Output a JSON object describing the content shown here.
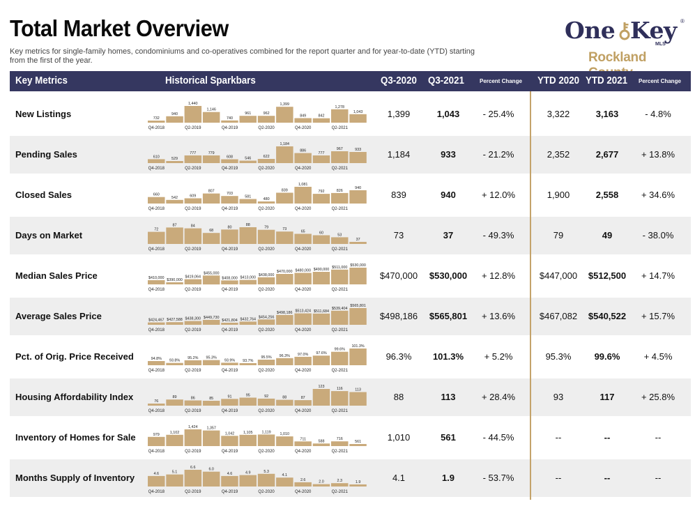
{
  "header": {
    "title": "Total Market Overview",
    "subtitle": "Key metrics for single-family homes, condominiums and co-operatives combined for the report quarter and for year-to-date (YTD) starting from the first of the year."
  },
  "logo": {
    "one": "One",
    "key": "Key",
    "mls": "MLS",
    "reg": "®",
    "county": "Rockland County",
    "brand_color": "#2f2f5a",
    "accent_color": "#c0a063"
  },
  "colors": {
    "header_bar": "#353760",
    "sparkbar": "#c9aa7b",
    "divider": "#c4a36a",
    "row_alt": "#eeeeee"
  },
  "columns": {
    "key_metrics": "Key Metrics",
    "sparkbars": "Historical Sparkbars",
    "q3_2020": "Q3-2020",
    "q3_2021": "Q3-2021",
    "pct_change": "Percent Change",
    "ytd_2020": "YTD 2020",
    "ytd_2021": "YTD 2021",
    "ytd_pct_change": "Percent Change"
  },
  "spark_axis_labels": [
    "Q4-2018",
    "Q2-2019",
    "Q4-2019",
    "Q2-2020",
    "Q4-2020",
    "Q2-2021"
  ],
  "rows": [
    {
      "metric": "New Listings",
      "q3_2020": "1,399",
      "q3_2021": "1,043",
      "pct": "- 25.4%",
      "ytd_2020": "3,322",
      "ytd_2021": "3,163",
      "ytd_pct": "- 4.8%",
      "spark_values": [
        732,
        940,
        1440,
        1146,
        740,
        961,
        962,
        1399,
        849,
        842,
        1278,
        1043
      ],
      "spark_labels": [
        "732",
        "940",
        "1,440",
        "1,146",
        "740",
        "961",
        "962",
        "1,399",
        "849",
        "842",
        "1,278",
        "1,043"
      ]
    },
    {
      "metric": "Pending Sales",
      "q3_2020": "1,184",
      "q3_2021": "933",
      "pct": "- 21.2%",
      "ytd_2020": "2,352",
      "ytd_2021": "2,677",
      "ytd_pct": "+ 13.8%",
      "spark_values": [
        610,
        529,
        777,
        779,
        608,
        546,
        622,
        1184,
        886,
        777,
        967,
        933
      ],
      "spark_labels": [
        "610",
        "529",
        "777",
        "779",
        "608",
        "546",
        "622",
        "1,184",
        "886",
        "777",
        "967",
        "933"
      ]
    },
    {
      "metric": "Closed Sales",
      "q3_2020": "839",
      "q3_2021": "940",
      "pct": "+ 12.0%",
      "ytd_2020": "1,900",
      "ytd_2021": "2,558",
      "ytd_pct": "+ 34.6%",
      "spark_values": [
        660,
        542,
        609,
        807,
        703,
        581,
        480,
        839,
        1081,
        792,
        826,
        940
      ],
      "spark_labels": [
        "660",
        "542",
        "609",
        "807",
        "703",
        "581",
        "480",
        "839",
        "1,081",
        "792",
        "826",
        "940"
      ]
    },
    {
      "metric": "Days on Market",
      "q3_2020": "73",
      "q3_2021": "37",
      "pct": "- 49.3%",
      "ytd_2020": "79",
      "ytd_2021": "49",
      "ytd_pct": "- 38.0%",
      "spark_values": [
        72,
        87,
        84,
        68,
        80,
        88,
        79,
        73,
        65,
        60,
        53,
        37
      ],
      "spark_labels": [
        "72",
        "87",
        "84",
        "68",
        "80",
        "88",
        "79",
        "73",
        "65",
        "60",
        "53",
        "37"
      ]
    },
    {
      "metric": "Median Sales Price",
      "q3_2020": "$470,000",
      "q3_2021": "$530,000",
      "pct": "+ 12.8%",
      "ytd_2020": "$447,000",
      "ytd_2021": "$512,500",
      "ytd_pct": "+ 14.7%",
      "spark_values": [
        410000,
        390000,
        419064,
        455000,
        408000,
        413000,
        438000,
        470000,
        480000,
        490000,
        511000,
        530000
      ],
      "spark_labels": [
        "$410,000",
        "$390,000",
        "$419,064",
        "$455,000",
        "$408,000",
        "$413,000",
        "$438,000",
        "$470,000",
        "$480,000",
        "$490,000",
        "$511,000",
        "$530,000"
      ]
    },
    {
      "metric": "Average Sales Price",
      "q3_2020": "$498,186",
      "q3_2021": "$565,801",
      "pct": "+ 13.6%",
      "ytd_2020": "$467,082",
      "ytd_2021": "$540,522",
      "ytd_pct": "+ 15.7%",
      "spark_values": [
        424467,
        427588,
        438300,
        449730,
        421804,
        432764,
        454256,
        498186,
        513424,
        511684,
        539404,
        565801
      ],
      "spark_labels": [
        "$424,467",
        "$427,588",
        "$438,300",
        "$449,730",
        "$421,804",
        "$432,764",
        "$454,256",
        "$498,186",
        "$513,424",
        "$511,684",
        "$539,404",
        "$565,801"
      ]
    },
    {
      "metric": "Pct. of Orig. Price Received",
      "q3_2020": "96.3%",
      "q3_2021": "101.3%",
      "pct": "+ 5.2%",
      "ytd_2020": "95.3%",
      "ytd_2021": "99.6%",
      "ytd_pct": "+ 4.5%",
      "spark_values": [
        94.8,
        93.8,
        95.2,
        95.3,
        93.9,
        93.7,
        95.5,
        96.3,
        97.0,
        97.6,
        99.6,
        101.3
      ],
      "spark_labels": [
        "94.8%",
        "93.8%",
        "95.2%",
        "95.3%",
        "93.9%",
        "93.7%",
        "95.5%",
        "96.3%",
        "97.0%",
        "97.6%",
        "99.6%",
        "101.3%"
      ]
    },
    {
      "metric": "Housing Affordability Index",
      "q3_2020": "88",
      "q3_2021": "113",
      "pct": "+ 28.4%",
      "ytd_2020": "93",
      "ytd_2021": "117",
      "ytd_pct": "+ 25.8%",
      "spark_values": [
        76,
        89,
        86,
        85,
        91,
        95,
        92,
        88,
        87,
        123,
        116,
        113
      ],
      "spark_labels": [
        "76",
        "89",
        "86",
        "85",
        "91",
        "95",
        "92",
        "88",
        "87",
        "123",
        "116",
        "113"
      ]
    },
    {
      "metric": "Inventory of Homes for Sale",
      "q3_2020": "1,010",
      "q3_2021": "561",
      "pct": "- 44.5%",
      "ytd_2020": "--",
      "ytd_2021": "--",
      "ytd_pct": "--",
      "spark_values": [
        979,
        1102,
        1424,
        1357,
        1042,
        1105,
        1119,
        1010,
        711,
        588,
        716,
        561
      ],
      "spark_labels": [
        "979",
        "1,102",
        "1,424",
        "1,357",
        "1,042",
        "1,105",
        "1,119",
        "1,010",
        "711",
        "588",
        "716",
        "561"
      ]
    },
    {
      "metric": "Months Supply of Inventory",
      "q3_2020": "4.1",
      "q3_2021": "1.9",
      "pct": "- 53.7%",
      "ytd_2020": "--",
      "ytd_2021": "--",
      "ytd_pct": "--",
      "spark_values": [
        4.6,
        5.1,
        6.6,
        6.0,
        4.6,
        4.9,
        5.3,
        4.1,
        2.6,
        2.0,
        2.3,
        1.9
      ],
      "spark_labels": [
        "4.6",
        "5.1",
        "6.6",
        "6.0",
        "4.6",
        "4.9",
        "5.3",
        "4.1",
        "2.6",
        "2.0",
        "2.3",
        "1.9"
      ]
    }
  ]
}
